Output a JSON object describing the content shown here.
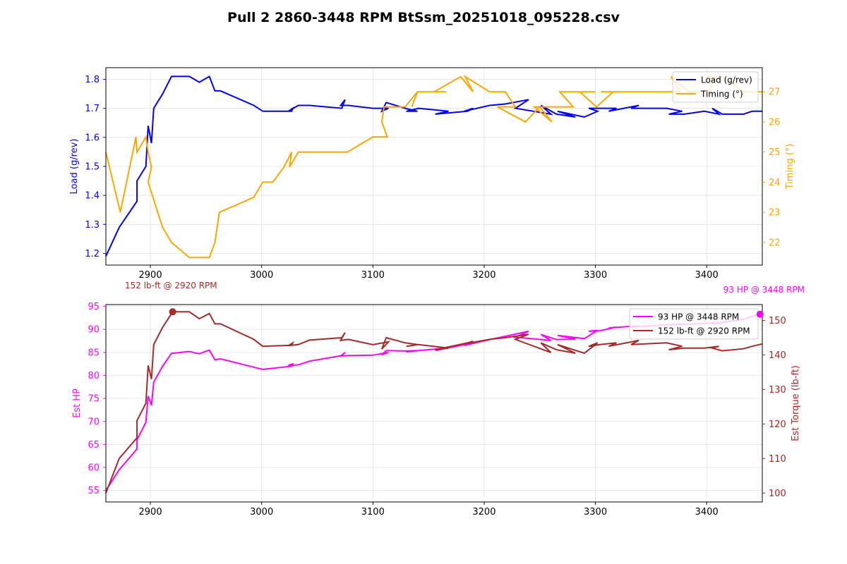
{
  "chart_data": [
    {
      "type": "line",
      "title": "Pull 2 2860-3448 RPM BtSsm_20251018_095228.csv",
      "xlabel": "",
      "x_ticks": [
        2900,
        3000,
        3100,
        3200,
        3300,
        3400
      ],
      "xlim": [
        2860,
        3450
      ],
      "grid": true,
      "legend_position": "top-right",
      "left_axis": {
        "label": "Load (g/rev)",
        "color": "#0000ff",
        "ylim": [
          1.16,
          1.84
        ],
        "ticks": [
          "1.2",
          "1.3",
          "1.4",
          "1.5",
          "1.6",
          "1.7",
          "1.8"
        ],
        "tick_values": [
          1.2,
          1.3,
          1.4,
          1.5,
          1.6,
          1.7,
          1.8
        ]
      },
      "right_axis": {
        "label": "Timing (°)",
        "color": "#ffa500",
        "ylim": [
          21.25,
          27.8
        ],
        "ticks": [
          "22",
          "23",
          "24",
          "25",
          "26",
          "27"
        ],
        "tick_values": [
          22,
          23,
          24,
          25,
          26,
          27
        ]
      },
      "series": [
        {
          "name": "Load (g/rev)",
          "axis": "left",
          "color": "#0000ff",
          "x": [
            2860,
            2872,
            2888,
            2888,
            2896,
            2898,
            2901,
            2903,
            2911,
            2919,
            2935,
            2944,
            2953,
            2958,
            2963,
            2993,
            3001,
            3027,
            3028,
            3024,
            3033,
            3043,
            3072,
            3075,
            3071,
            3078,
            3100,
            3114,
            3108,
            3112,
            3129,
            3140,
            3130,
            3141,
            3168,
            3156,
            3185,
            3190,
            3182,
            3205,
            3219,
            3240,
            3228,
            3260,
            3251,
            3265,
            3282,
            3266,
            3290,
            3302,
            3294,
            3304,
            3319,
            3312,
            3339,
            3332,
            3364,
            3378,
            3366,
            3380,
            3398,
            3411,
            3405,
            3414,
            3433,
            3441,
            3450
          ],
          "y": [
            1.19,
            1.29,
            1.38,
            1.45,
            1.5,
            1.64,
            1.58,
            1.7,
            1.75,
            1.81,
            1.81,
            1.79,
            1.81,
            1.76,
            1.76,
            1.71,
            1.69,
            1.69,
            1.7,
            1.69,
            1.71,
            1.71,
            1.7,
            1.73,
            1.71,
            1.71,
            1.7,
            1.7,
            1.69,
            1.72,
            1.7,
            1.69,
            1.69,
            1.7,
            1.69,
            1.68,
            1.69,
            1.7,
            1.69,
            1.71,
            1.715,
            1.73,
            1.7,
            1.68,
            1.71,
            1.68,
            1.67,
            1.69,
            1.67,
            1.69,
            1.7,
            1.7,
            1.7,
            1.69,
            1.71,
            1.7,
            1.7,
            1.69,
            1.68,
            1.68,
            1.69,
            1.68,
            1.7,
            1.68,
            1.68,
            1.69,
            1.69
          ]
        },
        {
          "name": "Timing (°)",
          "axis": "right",
          "color": "#ffa500",
          "x": [
            2860,
            2873,
            2887,
            2888,
            2896,
            2898,
            2901,
            2898,
            2911,
            2919,
            2935,
            2950,
            2953,
            2958,
            2962,
            2993,
            3001,
            3010,
            3020,
            3027,
            3025,
            3033,
            3043,
            3072,
            3077,
            3100,
            3113,
            3108,
            3110,
            3129,
            3140,
            3135,
            3140,
            3166,
            3155,
            3179,
            3190,
            3183,
            3205,
            3219,
            3228,
            3212,
            3237,
            3250,
            3261,
            3245,
            3280,
            3268,
            3300,
            3286,
            3301,
            3316,
            3305,
            3339,
            3330,
            3363,
            3376,
            3368,
            3384,
            3402,
            3408,
            3400,
            3414,
            3433,
            3443,
            3450
          ],
          "y": [
            25.0,
            23.0,
            25.5,
            25.0,
            25.5,
            25.0,
            24.5,
            24.0,
            22.5,
            22.0,
            21.5,
            21.5,
            21.5,
            22.0,
            23.0,
            23.5,
            24.0,
            24.0,
            24.5,
            25.0,
            24.5,
            25.0,
            25.0,
            25.0,
            25.0,
            25.5,
            25.5,
            26.0,
            26.5,
            26.5,
            27.0,
            26.5,
            27.0,
            27.0,
            27.0,
            27.5,
            27.0,
            27.5,
            27.0,
            27.0,
            26.5,
            26.5,
            26.0,
            26.5,
            26.0,
            26.5,
            26.5,
            27.0,
            27.0,
            27.0,
            26.5,
            27.0,
            27.0,
            27.0,
            27.0,
            27.0,
            27.0,
            27.5,
            27.0,
            27.0,
            27.5,
            27.5,
            27.5,
            27.0,
            27.0,
            27.0
          ]
        }
      ]
    },
    {
      "type": "line",
      "xlabel": "",
      "x_ticks": [
        2900,
        3000,
        3100,
        3200,
        3300,
        3400
      ],
      "xlim": [
        2860,
        3450
      ],
      "grid": true,
      "legend_position": "top-right",
      "left_axis": {
        "label": "Est HP",
        "color": "#ff00ff",
        "ylim": [
          52.5,
          95.4
        ],
        "ticks": [
          "55",
          "60",
          "65",
          "70",
          "75",
          "80",
          "85",
          "90",
          "95"
        ],
        "tick_values": [
          55,
          60,
          65,
          70,
          75,
          80,
          85,
          90,
          95
        ]
      },
      "right_axis": {
        "label": "Est Torque (lb-ft)",
        "color": "#b22222",
        "ylim": [
          97.4,
          154.6
        ],
        "ticks": [
          "100",
          "110",
          "120",
          "130",
          "140",
          "150"
        ],
        "tick_values": [
          100,
          110,
          120,
          130,
          140,
          150
        ]
      },
      "series": [
        {
          "name": "93 HP @ 3448 RPM",
          "axis": "left",
          "color": "#ff00ff",
          "x": [
            2860,
            2872,
            2888,
            2888,
            2896,
            2898,
            2901,
            2903,
            2911,
            2919,
            2935,
            2944,
            2953,
            2958,
            2963,
            2993,
            3001,
            3027,
            3028,
            3024,
            3033,
            3043,
            3072,
            3075,
            3071,
            3078,
            3100,
            3114,
            3108,
            3112,
            3129,
            3140,
            3130,
            3141,
            3168,
            3156,
            3185,
            3190,
            3182,
            3205,
            3219,
            3240,
            3228,
            3260,
            3251,
            3265,
            3282,
            3266,
            3290,
            3302,
            3294,
            3304,
            3319,
            3312,
            3339,
            3332,
            3364,
            3378,
            3366,
            3380,
            3398,
            3411,
            3405,
            3414,
            3433,
            3441,
            3448
          ],
          "y": [
            55.0,
            59.5,
            64.0,
            66.0,
            69.8,
            75.5,
            73.5,
            78.5,
            82.0,
            84.8,
            85.2,
            84.7,
            85.5,
            83.4,
            83.6,
            81.8,
            81.3,
            82.0,
            82.5,
            82.2,
            82.3,
            83.1,
            84.3,
            85.0,
            84.2,
            84.3,
            84.4,
            85.0,
            84.5,
            85.4,
            85.3,
            85.4,
            85.1,
            85.4,
            86.0,
            85.4,
            86.8,
            87.3,
            86.5,
            87.8,
            88.5,
            89.6,
            88.3,
            87.6,
            88.9,
            87.8,
            87.9,
            88.7,
            88.0,
            89.8,
            89.6,
            89.7,
            90.5,
            90.3,
            90.8,
            90.5,
            91.0,
            91.2,
            91.0,
            91.1,
            91.3,
            91.5,
            91.2,
            91.5,
            92.2,
            92.8,
            93.3
          ]
        },
        {
          "name": "152 lb-ft @ 2920 RPM",
          "axis": "right",
          "color": "#a52a2a",
          "x": [
            2860,
            2872,
            2888,
            2888,
            2896,
            2898,
            2901,
            2903,
            2911,
            2920,
            2935,
            2944,
            2953,
            2958,
            2963,
            2993,
            3001,
            3027,
            3028,
            3024,
            3033,
            3043,
            3072,
            3075,
            3071,
            3078,
            3100,
            3114,
            3108,
            3112,
            3129,
            3140,
            3130,
            3141,
            3168,
            3156,
            3185,
            3190,
            3182,
            3205,
            3219,
            3240,
            3228,
            3260,
            3251,
            3265,
            3282,
            3266,
            3290,
            3302,
            3294,
            3304,
            3319,
            3312,
            3339,
            3332,
            3364,
            3378,
            3366,
            3380,
            3398,
            3411,
            3405,
            3414,
            3433,
            3441,
            3450
          ],
          "y": [
            100.0,
            110.0,
            116.0,
            121.0,
            126.0,
            137.0,
            133.0,
            143.0,
            148.0,
            152.5,
            152.5,
            150.5,
            152.0,
            149.0,
            149.0,
            144.5,
            142.5,
            142.8,
            143.5,
            142.7,
            143.0,
            144.3,
            145.0,
            146.5,
            144.2,
            144.5,
            143.0,
            143.8,
            141.7,
            145.0,
            143.5,
            143.0,
            142.5,
            143.0,
            142.0,
            141.5,
            143.5,
            144.0,
            143.2,
            144.5,
            145.0,
            146.0,
            144.5,
            140.7,
            143.5,
            141.5,
            140.5,
            143.0,
            140.5,
            143.5,
            142.5,
            143.0,
            143.5,
            142.5,
            144.2,
            143.0,
            143.5,
            142.5,
            141.5,
            142.0,
            142.0,
            142.5,
            142.0,
            141.2,
            141.8,
            142.5,
            143.2
          ]
        }
      ],
      "annotations": [
        {
          "text": "152 lb-ft @ 2920 RPM",
          "color": "#a52a2a",
          "peak_x": 2920,
          "peak_y": 152.5,
          "peak_axis": "right",
          "position": "left"
        },
        {
          "text": "93 HP @ 3448 RPM",
          "color": "#ff00ff",
          "peak_x": 3448,
          "peak_y": 93.3,
          "peak_axis": "left",
          "position": "right"
        }
      ]
    }
  ]
}
